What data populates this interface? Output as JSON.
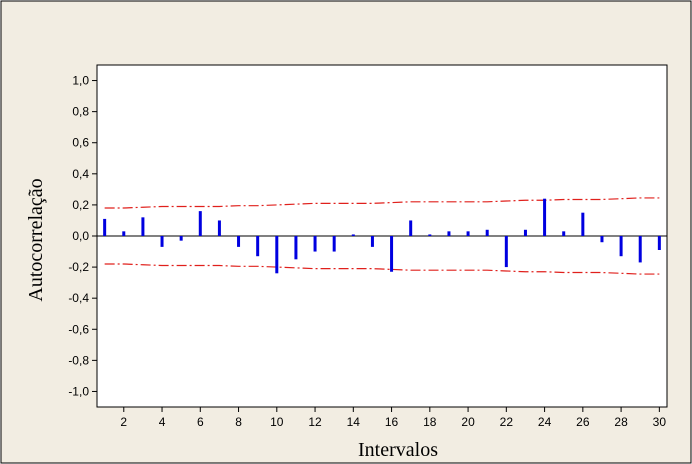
{
  "chart_data": {
    "type": "bar",
    "title": "",
    "xlabel": "Intervalos",
    "ylabel": "Autocorrelação",
    "xlim": [
      0.6,
      30.4
    ],
    "ylim": [
      -1.1,
      1.1
    ],
    "grid": false,
    "legend": "none",
    "y_ticks": [
      {
        "v": 1.0,
        "label": "1,0"
      },
      {
        "v": 0.8,
        "label": "0,8"
      },
      {
        "v": 0.6,
        "label": "0,6"
      },
      {
        "v": 0.4,
        "label": "0,4"
      },
      {
        "v": 0.2,
        "label": "0,2"
      },
      {
        "v": 0.0,
        "label": "0,0"
      },
      {
        "v": -0.2,
        "label": "-0,2"
      },
      {
        "v": -0.4,
        "label": "-0,4"
      },
      {
        "v": -0.6,
        "label": "-0,6"
      },
      {
        "v": -0.8,
        "label": "-0,8"
      },
      {
        "v": -1.0,
        "label": "-1,0"
      }
    ],
    "x_ticks": [
      {
        "v": 2,
        "label": "2"
      },
      {
        "v": 4,
        "label": "4"
      },
      {
        "v": 6,
        "label": "6"
      },
      {
        "v": 8,
        "label": "8"
      },
      {
        "v": 10,
        "label": "10"
      },
      {
        "v": 12,
        "label": "12"
      },
      {
        "v": 14,
        "label": "14"
      },
      {
        "v": 16,
        "label": "16"
      },
      {
        "v": 18,
        "label": "18"
      },
      {
        "v": 20,
        "label": "20"
      },
      {
        "v": 22,
        "label": "22"
      },
      {
        "v": 24,
        "label": "24"
      },
      {
        "v": 26,
        "label": "26"
      },
      {
        "v": 28,
        "label": "28"
      },
      {
        "v": 30,
        "label": "30"
      }
    ],
    "lags": [
      1,
      2,
      3,
      4,
      5,
      6,
      7,
      8,
      9,
      10,
      11,
      12,
      13,
      14,
      15,
      16,
      17,
      18,
      19,
      20,
      21,
      22,
      23,
      24,
      25,
      26,
      27,
      28,
      29,
      30
    ],
    "acf": [
      0.11,
      0.03,
      0.12,
      -0.07,
      -0.03,
      0.16,
      0.1,
      -0.07,
      -0.13,
      -0.24,
      -0.15,
      -0.1,
      -0.1,
      0.01,
      -0.07,
      -0.23,
      0.1,
      0.01,
      0.03,
      0.03,
      0.04,
      -0.2,
      0.04,
      0.24,
      0.03,
      0.15,
      -0.04,
      -0.13,
      -0.17,
      -0.09
    ],
    "confidence_limit": [
      0.18,
      0.18,
      0.185,
      0.19,
      0.19,
      0.19,
      0.19,
      0.195,
      0.195,
      0.2,
      0.205,
      0.21,
      0.21,
      0.21,
      0.21,
      0.215,
      0.22,
      0.22,
      0.22,
      0.22,
      0.22,
      0.225,
      0.23,
      0.23,
      0.235,
      0.235,
      0.235,
      0.24,
      0.245,
      0.245
    ],
    "colors": {
      "outer_background": "#f2ede2",
      "plot_background": "#ffffff",
      "bars": "#0000e0",
      "limits": "#e0201c"
    }
  }
}
